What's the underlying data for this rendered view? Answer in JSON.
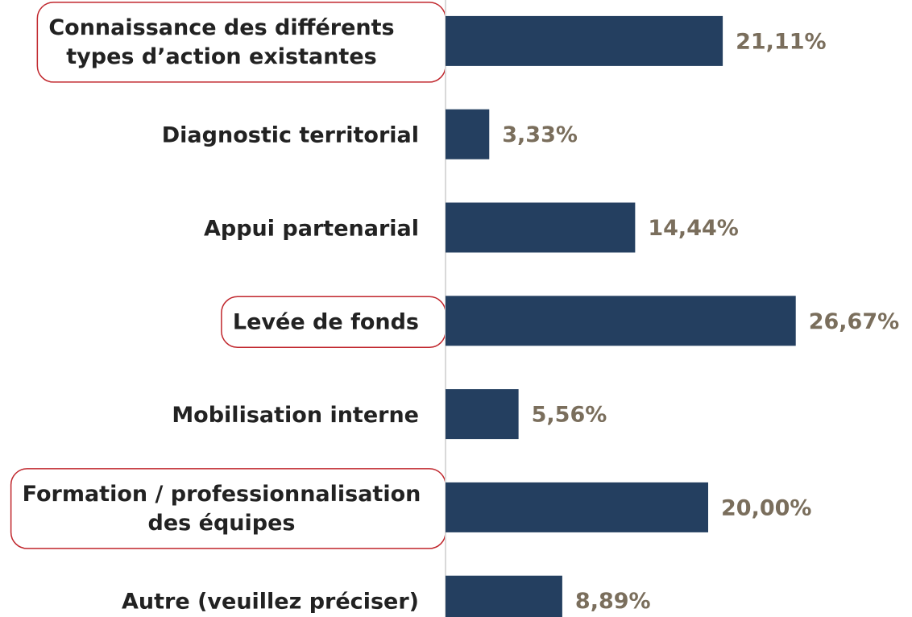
{
  "chart_data": {
    "type": "barh",
    "categories": [
      "Connaissance des différents\ntypes d’action existantes",
      "Diagnostic territorial",
      "Appui partenarial",
      "Levée de fonds",
      "Mobilisation interne",
      "Formation / professionnalisation\ndes équipes",
      "Autre (veuillez préciser)"
    ],
    "values": [
      21.11,
      3.33,
      14.44,
      26.67,
      5.56,
      20.0,
      8.89
    ],
    "value_labels": [
      "21,11%",
      "3,33%",
      "14,44%",
      "26,67%",
      "5,56%",
      "20,00%",
      "8,89%"
    ],
    "color": "#243f60",
    "xlim": [
      0,
      30
    ],
    "highlighted": [
      0,
      3,
      5
    ],
    "highlight_color": "#c0262c"
  }
}
